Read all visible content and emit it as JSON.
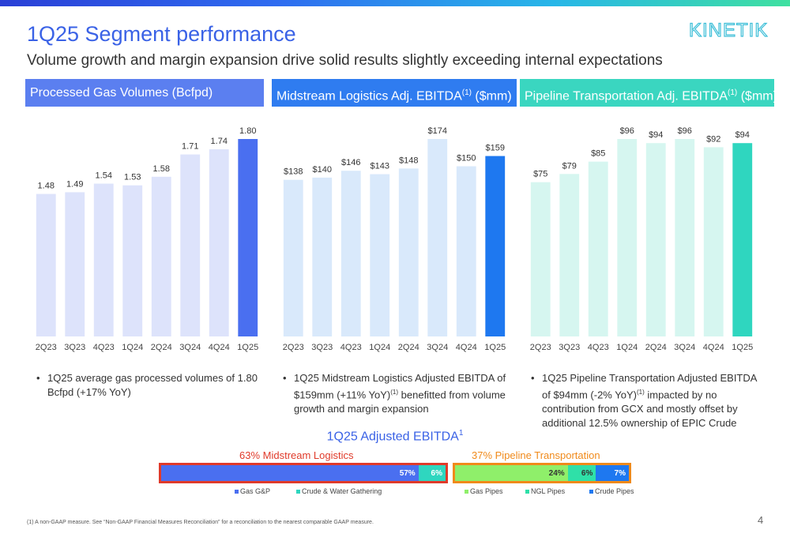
{
  "slide": {
    "title": "1Q25 Segment performance",
    "subtitle": "Volume growth and margin expansion drive solid results slightly exceeding internal expectations",
    "logo_text": "KINETIK",
    "page_number": "4",
    "footnote": "(1)    A non-GAAP measure. See “Non-GAAP Financial Measures Reconciliation” for a reconciliation to the nearest comparable GAAP measure."
  },
  "panels": [
    {
      "header_main": "Processed Gas Volumes (Bcfpd)",
      "header_sup": "",
      "header_tail": "",
      "header_color": "#5b7ff0",
      "bullet_pre": "1Q25 average gas processed volumes of 1.80 Bcfpd (+17% YoY)",
      "bullet_sup": "",
      "bullet_post": ""
    },
    {
      "header_main": "Midstream Logistics Adj. EBITDA",
      "header_sup": "(1)",
      "header_tail": " ($mm)",
      "header_color": "#2f7cf0",
      "bullet_pre": "1Q25 Midstream Logistics Adjusted EBITDA of $159mm (+11% YoY)",
      "bullet_sup": "(1)",
      "bullet_post": " benefitted from volume growth and margin expansion"
    },
    {
      "header_main": "Pipeline Transportation Adj. EBITDA",
      "header_sup": "(1)",
      "header_tail": " ($mm)",
      "header_color": "#3ad6c0",
      "bullet_pre": "1Q25 Pipeline Transportation Adjusted EBITDA of $94mm (-2% YoY)",
      "bullet_sup": "(1)",
      "bullet_post": " impacted by no contribution from GCX and mostly offset by additional 12.5% ownership of EPIC Crude"
    }
  ],
  "chart_data": [
    {
      "type": "bar",
      "categories": [
        "2Q23",
        "3Q23",
        "4Q23",
        "1Q24",
        "2Q24",
        "3Q24",
        "4Q24",
        "1Q25"
      ],
      "values": [
        1.48,
        1.49,
        1.54,
        1.53,
        1.58,
        1.71,
        1.74,
        1.8
      ],
      "labels": [
        "1.48",
        "1.49",
        "1.54",
        "1.53",
        "1.58",
        "1.71",
        "1.74",
        "1.80"
      ],
      "ylim": [
        0.65,
        1.8
      ],
      "bar_color": "#dde3fb",
      "highlight_color": "#4a6ff0"
    },
    {
      "type": "bar",
      "categories": [
        "2Q23",
        "3Q23",
        "4Q23",
        "1Q24",
        "2Q24",
        "3Q24",
        "4Q24",
        "1Q25"
      ],
      "values": [
        138,
        140,
        146,
        143,
        148,
        174,
        150,
        159
      ],
      "labels": [
        "$138",
        "$140",
        "$146",
        "$143",
        "$148",
        "$174",
        "$150",
        "$159"
      ],
      "ylim": [
        0,
        174
      ],
      "bar_color": "#d9e9fb",
      "highlight_color": "#1e78f0"
    },
    {
      "type": "bar",
      "categories": [
        "2Q23",
        "3Q23",
        "4Q23",
        "1Q24",
        "2Q24",
        "3Q24",
        "4Q24",
        "1Q25"
      ],
      "values": [
        75,
        79,
        85,
        96,
        94,
        96,
        92,
        94
      ],
      "labels": [
        "$75",
        "$79",
        "$85",
        "$96",
        "$94",
        "$96",
        "$92",
        "$94"
      ],
      "ylim": [
        0,
        96
      ],
      "bar_color": "#d6f6f0",
      "highlight_color": "#2fd6bf"
    }
  ],
  "ebitda_mix": {
    "title_main": "1Q25 Adjusted EBITDA",
    "title_sup": "1",
    "midstream_label": "63% Midstream Logistics",
    "pipeline_label": "37% Pipeline Transportation",
    "midstream_color": "#e03a2a",
    "pipeline_color": "#f08a1a",
    "midstream_segments": [
      {
        "name": "Gas G&P",
        "pct": 57,
        "label": "57%",
        "color": "#4a6ff0"
      },
      {
        "name": "Crude & Water Gathering",
        "pct": 6,
        "label": "6%",
        "color": "#2fd6bf"
      }
    ],
    "pipeline_segments": [
      {
        "name": "Gas Pipes",
        "pct": 24,
        "label": "24%",
        "color": "#8fef6a"
      },
      {
        "name": "NGL Pipes",
        "pct": 6,
        "label": "6%",
        "color": "#2fe0a8"
      },
      {
        "name": "Crude Pipes",
        "pct": 7,
        "label": "7%",
        "color": "#1e78f0"
      }
    ]
  }
}
